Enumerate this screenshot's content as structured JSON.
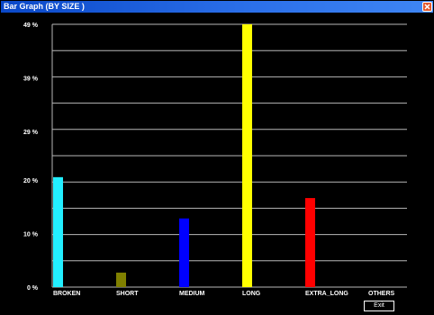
{
  "window": {
    "title": "Bar Graph (BY SIZE )"
  },
  "buttons": {
    "exit_label": "Exit"
  },
  "chart_data": {
    "type": "bar",
    "title": "",
    "xlabel": "",
    "ylabel": "",
    "ylim": [
      0,
      49
    ],
    "grid": true,
    "yticks": [
      0,
      10,
      20,
      29,
      39,
      49
    ],
    "ytick_labels": [
      "0 %",
      "10 %",
      "20 %",
      "29 %",
      "39 %",
      "49 %"
    ],
    "categories": [
      "BROKEN",
      "SHORT",
      "MEDIUM",
      "LONG",
      "EXTRA_LONG",
      "OTHERS"
    ],
    "values": [
      20.5,
      2.7,
      12.8,
      49,
      16.6,
      0
    ],
    "colors": [
      "#22eeff",
      "#808000",
      "#0000ff",
      "#ffff00",
      "#ff0000",
      "#ffffff"
    ]
  }
}
